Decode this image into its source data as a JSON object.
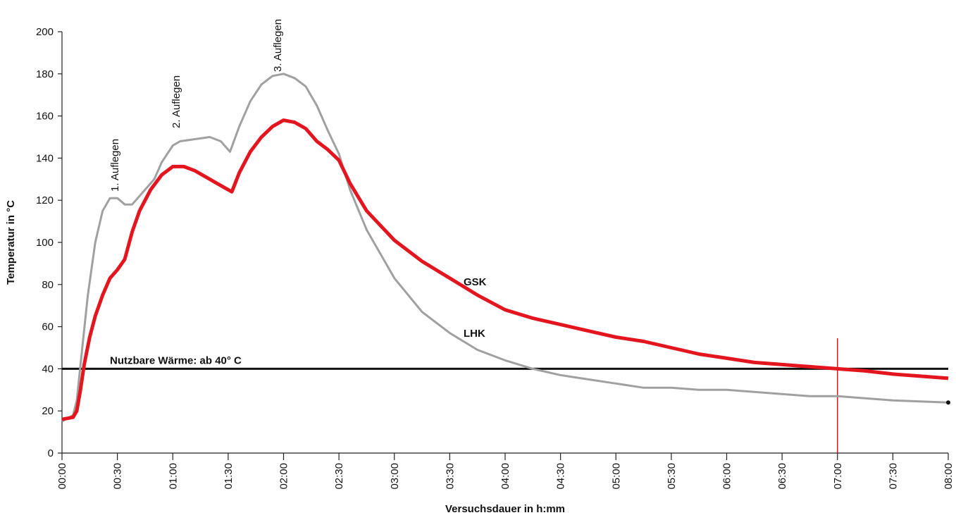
{
  "chart_data": {
    "type": "line",
    "x_label": "Versuchsdauer in h:mm",
    "y_label": "Temperatur in °C",
    "xlim": [
      0,
      480
    ],
    "xticks": [
      {
        "value": 0,
        "label": "00:00"
      },
      {
        "value": 30,
        "label": "00:30"
      },
      {
        "value": 60,
        "label": "01:00"
      },
      {
        "value": 90,
        "label": "01:30"
      },
      {
        "value": 120,
        "label": "02:00"
      },
      {
        "value": 150,
        "label": "02:30"
      },
      {
        "value": 180,
        "label": "03:00"
      },
      {
        "value": 210,
        "label": "03:30"
      },
      {
        "value": 240,
        "label": "04:00"
      },
      {
        "value": 270,
        "label": "04:30"
      },
      {
        "value": 300,
        "label": "05:00"
      },
      {
        "value": 330,
        "label": "05:30"
      },
      {
        "value": 360,
        "label": "06:00"
      },
      {
        "value": 390,
        "label": "06:30"
      },
      {
        "value": 420,
        "label": "07:00"
      },
      {
        "value": 450,
        "label": "07:30"
      },
      {
        "value": 480,
        "label": "08:00"
      }
    ],
    "ylim": [
      0,
      200
    ],
    "yticks": [
      0,
      20,
      40,
      60,
      80,
      100,
      120,
      140,
      160,
      180,
      200
    ],
    "grid": false,
    "annotations": [
      "1. Auflegen",
      "2. Auflegen",
      "3. Auflegen"
    ],
    "hline": {
      "value": 40,
      "label": "Nutzbare Wärme: ab 40° C",
      "color": "#111111"
    },
    "vline": {
      "value": 420,
      "color": "#e3161f"
    },
    "series": [
      {
        "name": "LHK",
        "color": "#a0a0a0",
        "x": [
          0,
          6,
          8,
          11,
          14,
          18,
          22,
          26,
          30,
          34,
          38,
          44,
          50,
          54,
          60,
          64,
          72,
          80,
          86,
          91,
          96,
          102,
          108,
          114,
          120,
          126,
          132,
          138,
          144,
          150,
          156,
          165,
          180,
          195,
          210,
          225,
          240,
          255,
          270,
          285,
          300,
          315,
          330,
          345,
          360,
          375,
          390,
          405,
          420,
          435,
          450,
          465,
          480
        ],
        "values": [
          15,
          18,
          25,
          50,
          75,
          100,
          115,
          121,
          121,
          118,
          118,
          124,
          130,
          138,
          146,
          148,
          149,
          150,
          148,
          143,
          155,
          167,
          175,
          179,
          180,
          178,
          174,
          165,
          153,
          142,
          125,
          106,
          83,
          67,
          57,
          49,
          44,
          40,
          37,
          35,
          33,
          31,
          31,
          30,
          30,
          29,
          28,
          27,
          27,
          26,
          25,
          24.5,
          24
        ]
      },
      {
        "name": "GSK",
        "color": "#e3161f",
        "x": [
          0,
          6,
          8,
          10,
          12,
          15,
          18,
          22,
          26,
          30,
          34,
          38,
          42,
          48,
          54,
          60,
          66,
          72,
          78,
          84,
          90,
          92,
          96,
          102,
          108,
          114,
          120,
          126,
          132,
          138,
          144,
          150,
          156,
          165,
          180,
          195,
          210,
          225,
          240,
          255,
          270,
          285,
          300,
          315,
          330,
          345,
          360,
          375,
          390,
          405,
          420,
          435,
          450,
          465,
          480
        ],
        "values": [
          16,
          17,
          20,
          30,
          42,
          55,
          65,
          75,
          83,
          87,
          92,
          105,
          115,
          125,
          132,
          136,
          136,
          134,
          131,
          128,
          125,
          124,
          133,
          143,
          150,
          155,
          158,
          157,
          154,
          148,
          144,
          139,
          128,
          115,
          101,
          91,
          83,
          75,
          68,
          64,
          61,
          58,
          55,
          53,
          50,
          47,
          45,
          43,
          42,
          41,
          40,
          39,
          37.5,
          36.5,
          35.5
        ]
      }
    ]
  }
}
